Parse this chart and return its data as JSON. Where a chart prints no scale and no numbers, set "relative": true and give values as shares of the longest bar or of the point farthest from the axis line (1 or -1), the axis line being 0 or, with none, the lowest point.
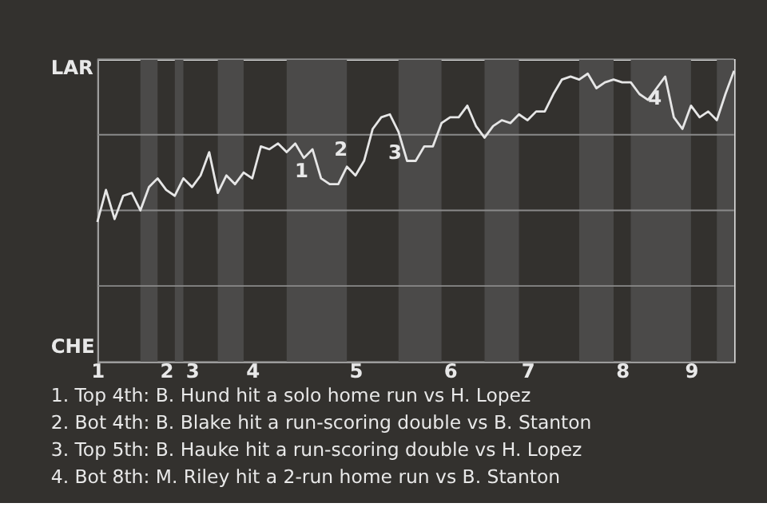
{
  "chart_data": {
    "type": "line",
    "relative": true,
    "grid": "y",
    "line_style": "solid",
    "marker": "none",
    "categories": [
      "1",
      null,
      null,
      null,
      null,
      null,
      null,
      null,
      "2",
      null,
      null,
      "3",
      null,
      null,
      null,
      null,
      null,
      null,
      "4",
      null,
      null,
      null,
      null,
      null,
      null,
      null,
      null,
      null,
      null,
      null,
      "5",
      null,
      null,
      null,
      null,
      null,
      null,
      null,
      null,
      null,
      null,
      "6",
      null,
      null,
      null,
      null,
      null,
      null,
      null,
      null,
      "7",
      null,
      null,
      null,
      null,
      null,
      null,
      null,
      null,
      null,
      null,
      "8",
      null,
      null,
      null,
      null,
      null,
      null,
      null,
      "9",
      null,
      null,
      null,
      null,
      null
    ],
    "series": [
      {
        "color": "#e6e6e6",
        "values": [
          0.48,
          0.59,
          0.49,
          0.57,
          0.58,
          0.52,
          0.6,
          0.63,
          0.59,
          0.57,
          0.63,
          0.6,
          0.64,
          0.72,
          0.58,
          0.64,
          0.61,
          0.65,
          0.63,
          0.74,
          0.73,
          0.75,
          0.72,
          0.75,
          0.7,
          0.73,
          0.63,
          0.61,
          0.61,
          0.67,
          0.64,
          0.69,
          0.8,
          0.84,
          0.85,
          0.79,
          0.69,
          0.69,
          0.74,
          0.74,
          0.82,
          0.84,
          0.84,
          0.88,
          0.81,
          0.77,
          0.81,
          0.83,
          0.82,
          0.85,
          0.83,
          0.86,
          0.86,
          0.92,
          0.97,
          0.98,
          0.97,
          0.99,
          0.94,
          0.96,
          0.97,
          0.96,
          0.96,
          0.92,
          0.9,
          0.94,
          0.98,
          0.84,
          0.8,
          0.88,
          0.84,
          0.86,
          0.83,
          0.92,
          1
        ]
      }
    ],
    "annotations": [
      "LAR",
      "CHE",
      "1",
      "2",
      "3",
      "4",
      "1. Top 4th: B. Hund hit a solo home run vs H. Lopez",
      "2. Bot 4th: B. Blake hit a run-scoring double vs B. Stanton",
      "3. Top 5th: B. Hauke hit a run-scoring double vs H. Lopez",
      "4. Bot 8th: M. Riley hit a 2-run home run vs B. Stanton"
    ]
  }
}
